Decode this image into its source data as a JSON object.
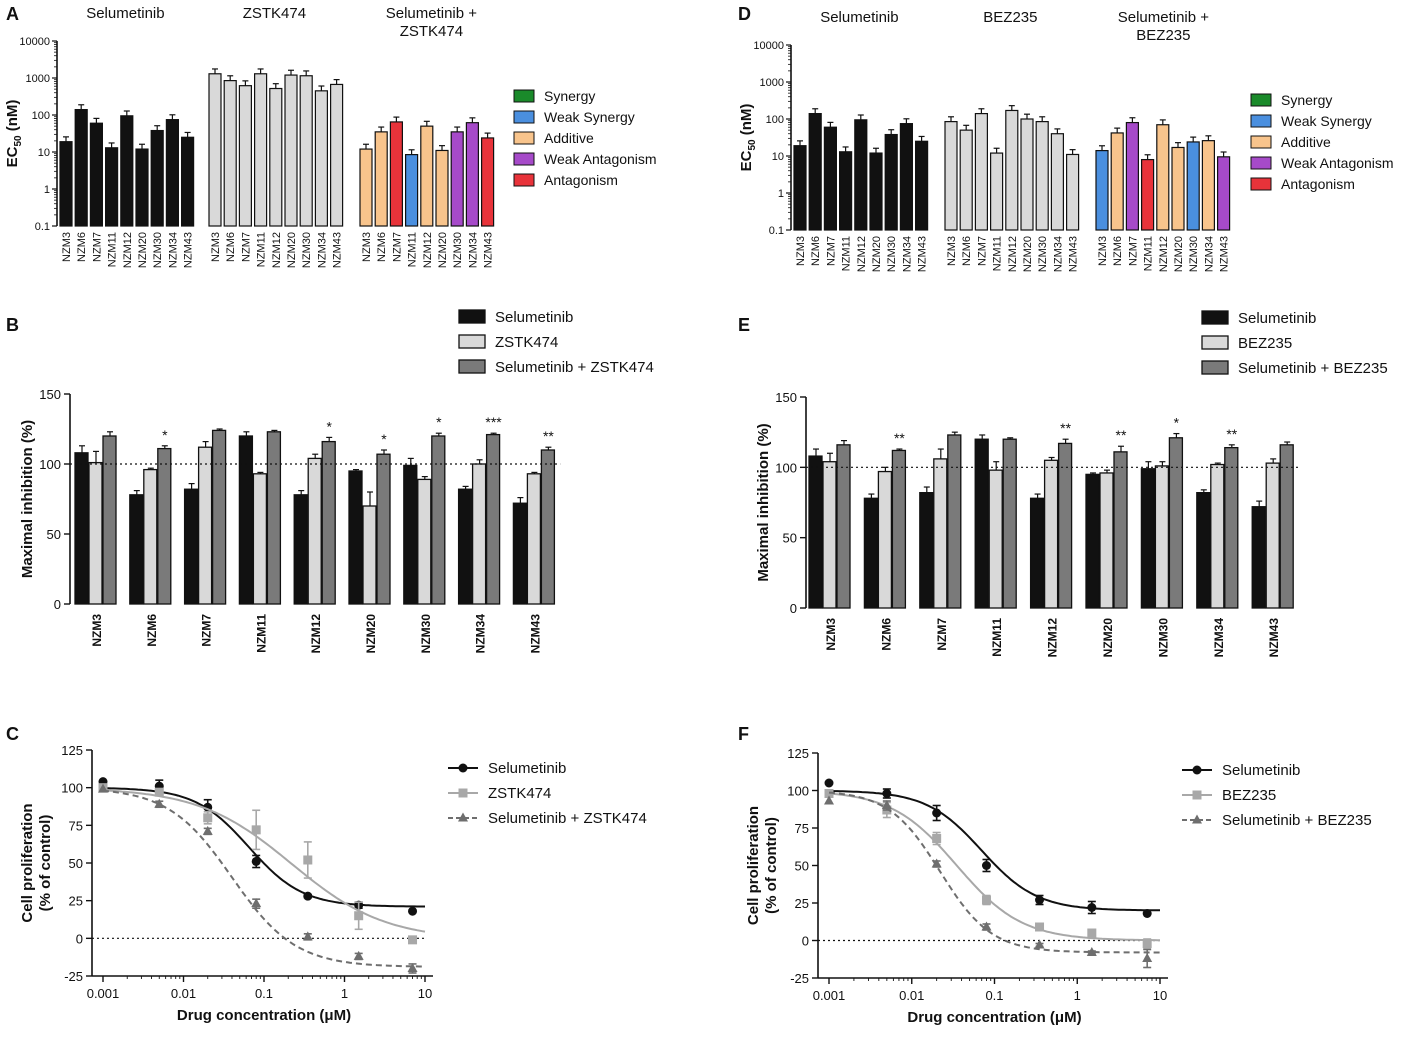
{
  "colors": {
    "black": "#111111",
    "light": "#d9d9d9",
    "dark": "#7a7a7a",
    "synergy": "#1a8a2a",
    "weak_synergy": "#4a8fdf",
    "additive": "#f8c48c",
    "weak_antagonism": "#a64ac9",
    "antagonism": "#e8333a",
    "curve_gray": "#a8a8a8",
    "curve_dark": "#6e6e6e"
  },
  "cell_lines": [
    "NZM3",
    "NZM6",
    "NZM7",
    "NZM11",
    "NZM12",
    "NZM20",
    "NZM30",
    "NZM34",
    "NZM43"
  ],
  "combo_legend": [
    "Synergy",
    "Weak Synergy",
    "Additive",
    "Weak Antagonism",
    "Antagonism"
  ],
  "chart_data": [
    {
      "panel": "A",
      "type": "bar",
      "yscale": "log",
      "ylabel": "EC50 (nM)",
      "ylabel_main": "EC",
      "ylabel_sub": "50",
      "ylabel_tail": " (nM)",
      "yticks": [
        "10000",
        "1000",
        "100",
        "10",
        "1",
        "0.1"
      ],
      "ylim": [
        0.1,
        10000
      ],
      "groups": [
        {
          "title": "Selumetinib",
          "color_key": "black",
          "values": [
            19,
            140,
            60,
            13,
            95,
            12,
            38,
            75,
            25
          ]
        },
        {
          "title": "ZSTK474",
          "color_key": "light",
          "values": [
            1300,
            850,
            620,
            1300,
            520,
            1200,
            1150,
            450,
            670
          ]
        },
        {
          "title": "Selumetinib + ZSTK474",
          "title_l1": "Selumetinib +",
          "title_l2": "ZSTK474",
          "values": [
            12,
            35,
            65,
            8.5,
            50,
            11,
            35,
            62,
            24
          ],
          "classes": [
            "additive",
            "additive",
            "antagonism",
            "weak_synergy",
            "additive",
            "additive",
            "weak_antagonism",
            "weak_antagonism",
            "antagonism"
          ]
        }
      ],
      "legend": [
        "Synergy",
        "Weak Synergy",
        "Additive",
        "Weak Antagonism",
        "Antagonism"
      ]
    },
    {
      "panel": "D",
      "type": "bar",
      "yscale": "log",
      "ylabel": "EC50 (nM)",
      "ylabel_main": "EC",
      "ylabel_sub": "50",
      "ylabel_tail": " (nM)",
      "yticks": [
        "10000",
        "1000",
        "100",
        "10",
        "1",
        "0.1"
      ],
      "ylim": [
        0.1,
        10000
      ],
      "groups": [
        {
          "title": "Selumetinib",
          "color_key": "black",
          "values": [
            19,
            140,
            60,
            13,
            95,
            12,
            38,
            75,
            25
          ]
        },
        {
          "title": "BEZ235",
          "color_key": "light",
          "values": [
            85,
            50,
            140,
            12,
            170,
            100,
            85,
            40,
            11
          ]
        },
        {
          "title": "Selumetinib + BEZ235",
          "title_l1": "Selumetinib +",
          "title_l2": "BEZ235",
          "values": [
            14,
            42,
            80,
            8,
            70,
            17,
            24,
            26,
            9.5
          ],
          "classes": [
            "weak_synergy",
            "additive",
            "weak_antagonism",
            "antagonism",
            "additive",
            "additive",
            "weak_synergy",
            "additive",
            "weak_antagonism"
          ]
        }
      ],
      "legend": [
        "Synergy",
        "Weak Synergy",
        "Additive",
        "Weak Antagonism",
        "Antagonism"
      ]
    },
    {
      "panel": "B",
      "type": "bar",
      "ylabel": "Maximal inhibition (%)",
      "ylim": [
        0,
        150
      ],
      "yticks": [
        "150",
        "100",
        "50",
        "0"
      ],
      "reference_line": 100,
      "series": [
        {
          "name": "Selumetinib",
          "values": [
            108,
            78,
            82,
            120,
            78,
            95,
            99,
            82,
            72
          ],
          "err": [
            5,
            3,
            4,
            3,
            3,
            1,
            5,
            2,
            4
          ]
        },
        {
          "name": "ZSTK474",
          "values": [
            101,
            96,
            112,
            93,
            104,
            70,
            89,
            100,
            93
          ],
          "err": [
            8,
            1,
            4,
            1,
            3,
            10,
            2,
            3,
            1
          ]
        },
        {
          "name": "Selumetinib + ZSTK474",
          "values": [
            120,
            111,
            124,
            123,
            116,
            107,
            120,
            121,
            110
          ],
          "err": [
            3,
            2,
            1,
            1,
            3,
            3,
            2,
            1,
            2
          ]
        }
      ],
      "significance": [
        "",
        "*",
        "",
        "",
        "*",
        "*",
        "*",
        "***",
        "**"
      ]
    },
    {
      "panel": "E",
      "type": "bar",
      "ylabel": "Maximal inhibition (%)",
      "ylim": [
        0,
        150
      ],
      "yticks": [
        "150",
        "100",
        "50",
        "0"
      ],
      "reference_line": 100,
      "series": [
        {
          "name": "Selumetinib",
          "values": [
            108,
            78,
            82,
            120,
            78,
            95,
            99,
            82,
            72
          ],
          "err": [
            5,
            3,
            4,
            3,
            3,
            1,
            5,
            2,
            4
          ]
        },
        {
          "name": "BEZ235",
          "values": [
            104,
            97,
            106,
            98,
            105,
            96,
            101,
            102,
            103
          ],
          "err": [
            6,
            3,
            7,
            6,
            2,
            2,
            3,
            1,
            3
          ]
        },
        {
          "name": "Selumetinib + BEZ235",
          "values": [
            116,
            112,
            123,
            120,
            117,
            111,
            121,
            114,
            116
          ],
          "err": [
            3,
            1,
            2,
            1,
            3,
            4,
            3,
            2,
            2
          ]
        }
      ],
      "significance": [
        "",
        "**",
        "",
        "",
        "**",
        "**",
        "*",
        "**",
        ""
      ]
    },
    {
      "panel": "C",
      "type": "line",
      "xscale": "log",
      "xlabel": "Drug concentration (μM)",
      "ylabel": "Cell proliferation (% of control)",
      "ylabel_l1": "Cell proliferation",
      "ylabel_l2": "(% of control)",
      "xticks": [
        "0.001",
        "0.01",
        "0.1",
        "1",
        "10"
      ],
      "yticks": [
        "125",
        "100",
        "75",
        "50",
        "25",
        "0",
        "-25"
      ],
      "xlim": [
        0.001,
        10
      ],
      "ylim": [
        -25,
        125
      ],
      "reference_line": 0,
      "x": [
        0.001,
        0.005,
        0.02,
        0.08,
        0.35,
        1.5,
        7
      ],
      "series": [
        {
          "name": "Selumetinib",
          "marker": "circle",
          "style": "solid",
          "values": [
            104,
            101,
            87,
            51,
            28,
            22,
            18
          ],
          "err": [
            0,
            4,
            5,
            4,
            1,
            2,
            0
          ],
          "fit": {
            "top": 100,
            "bottom": 21,
            "ec50": 0.065,
            "hill": 1.3
          }
        },
        {
          "name": "ZSTK474",
          "marker": "square",
          "style": "solid",
          "values": [
            100,
            97,
            80,
            72,
            52,
            15,
            -1
          ],
          "err": [
            0,
            2,
            4,
            13,
            12,
            9,
            2
          ],
          "fit": {
            "top": 100,
            "bottom": -1,
            "ec50": 0.22,
            "hill": 0.75
          }
        },
        {
          "name": "Selumetinib + ZSTK474",
          "marker": "triangle",
          "style": "dashed",
          "values": [
            99,
            89,
            71,
            23,
            1,
            -12,
            -20
          ],
          "err": [
            0,
            2,
            2,
            3,
            2,
            2,
            3
          ],
          "fit": {
            "top": 100,
            "bottom": -19,
            "ec50": 0.04,
            "hill": 1.1
          }
        }
      ]
    },
    {
      "panel": "F",
      "type": "line",
      "xscale": "log",
      "xlabel": "Drug concentration (μM)",
      "ylabel": "Cell proliferation (% of control)",
      "ylabel_l1": "Cell proliferation",
      "ylabel_l2": "(% of control)",
      "xticks": [
        "0.001",
        "0.01",
        "0.1",
        "1",
        "10"
      ],
      "yticks": [
        "125",
        "100",
        "75",
        "50",
        "25",
        "0",
        "-25"
      ],
      "xlim": [
        0.001,
        10
      ],
      "ylim": [
        -25,
        125
      ],
      "reference_line": 0,
      "x": [
        0.001,
        0.005,
        0.02,
        0.08,
        0.35,
        1.5,
        7
      ],
      "series": [
        {
          "name": "Selumetinib",
          "marker": "circle",
          "style": "solid",
          "values": [
            105,
            98,
            85,
            50,
            27,
            22,
            18
          ],
          "err": [
            0,
            3,
            5,
            4,
            3,
            4,
            0
          ],
          "fit": {
            "top": 100,
            "bottom": 20,
            "ec50": 0.07,
            "hill": 1.3
          }
        },
        {
          "name": "BEZ235",
          "marker": "square",
          "style": "solid",
          "values": [
            98,
            87,
            68,
            27,
            9,
            5,
            -2
          ],
          "err": [
            0,
            5,
            4,
            3,
            1,
            1,
            3
          ],
          "fit": {
            "top": 100,
            "bottom": 0,
            "ec50": 0.035,
            "hill": 1.1
          }
        },
        {
          "name": "Selumetinib + BEZ235",
          "marker": "triangle",
          "style": "dashed",
          "values": [
            93,
            90,
            51,
            9,
            -3,
            -8,
            -12
          ],
          "err": [
            0,
            3,
            2,
            2,
            1,
            1,
            6
          ],
          "fit": {
            "top": 100,
            "bottom": -8,
            "ec50": 0.022,
            "hill": 1.4
          }
        }
      ]
    }
  ]
}
